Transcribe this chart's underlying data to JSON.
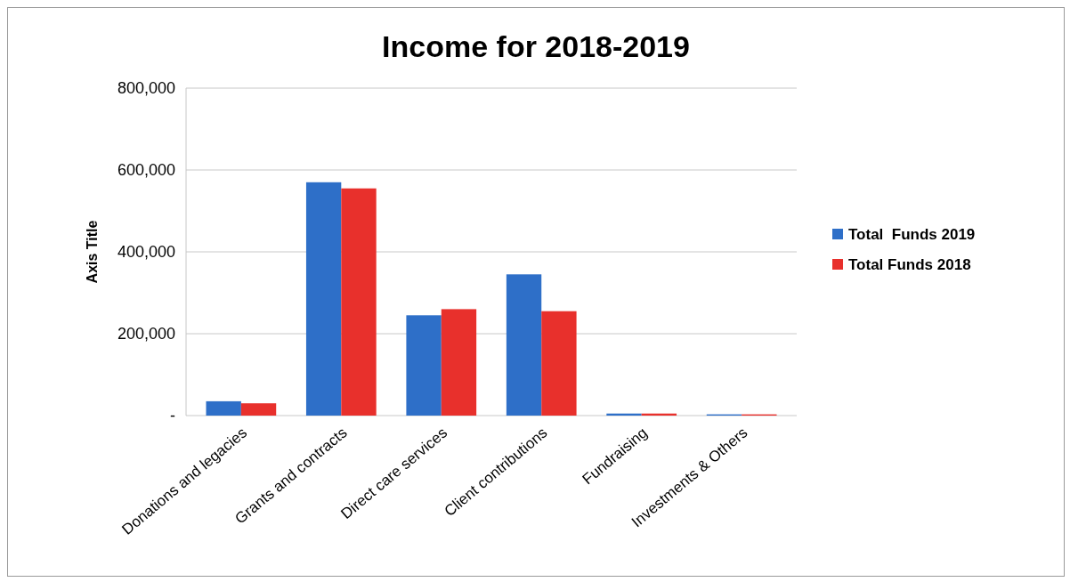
{
  "chart_data": {
    "type": "bar",
    "title": "Income for 2018-2019",
    "ylabel": "Axis Title",
    "categories": [
      "Donations and legacies",
      "Grants and contracts",
      "Direct care services",
      "Client contributions",
      "Fundraising",
      "Investments & Others"
    ],
    "series": [
      {
        "name": "Total  Funds 2019",
        "color": "#2e6fc8",
        "values": [
          35000,
          570000,
          245000,
          345000,
          5000,
          3000
        ]
      },
      {
        "name": "Total Funds 2018",
        "color": "#e8302c",
        "values": [
          30000,
          555000,
          260000,
          255000,
          5000,
          3000
        ]
      }
    ],
    "ylim": [
      0,
      800000
    ],
    "yticks": [
      {
        "value": 0,
        "label": "-"
      },
      {
        "value": 200000,
        "label": "200,000"
      },
      {
        "value": 400000,
        "label": "400,000"
      },
      {
        "value": 600000,
        "label": "600,000"
      },
      {
        "value": 800000,
        "label": "800,000"
      }
    ],
    "grid": "y",
    "legend": "right"
  }
}
